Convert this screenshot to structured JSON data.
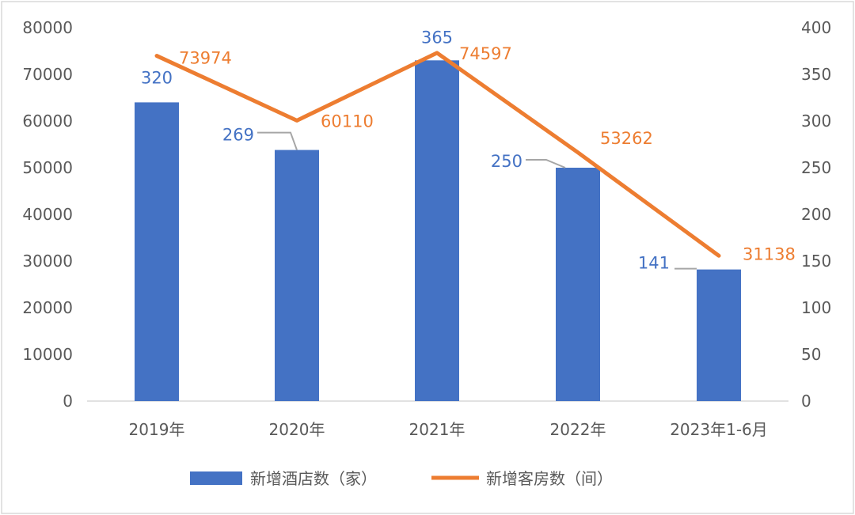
{
  "chart_data": {
    "type": "bar",
    "categories": [
      "2019年",
      "2020年",
      "2021年",
      "2022年",
      "2023年1-6月"
    ],
    "series": [
      {
        "name": "新增酒店数（家）",
        "type": "bar",
        "axis": "right",
        "values": [
          320,
          269,
          365,
          250,
          141
        ],
        "color": "#4472C4"
      },
      {
        "name": "新增客房数（间）",
        "type": "line",
        "axis": "left",
        "values": [
          73974,
          60110,
          74597,
          53262,
          31138
        ],
        "color": "#ED7D31"
      }
    ],
    "y_left": {
      "min": 0,
      "max": 80000,
      "ticks": [
        "0",
        "10000",
        "20000",
        "30000",
        "40000",
        "50000",
        "60000",
        "70000",
        "80000"
      ]
    },
    "y_right": {
      "min": 0,
      "max": 400,
      "ticks": [
        "0",
        "50",
        "100",
        "150",
        "200",
        "250",
        "300",
        "350",
        "400"
      ]
    },
    "bar_labels": [
      "320",
      "269",
      "365",
      "250",
      "141"
    ],
    "line_labels": [
      "73974",
      "60110",
      "74597",
      "53262",
      "31138"
    ],
    "legend_position": "bottom",
    "grid": false,
    "title": "",
    "xlabel": "",
    "ylabel": ""
  }
}
